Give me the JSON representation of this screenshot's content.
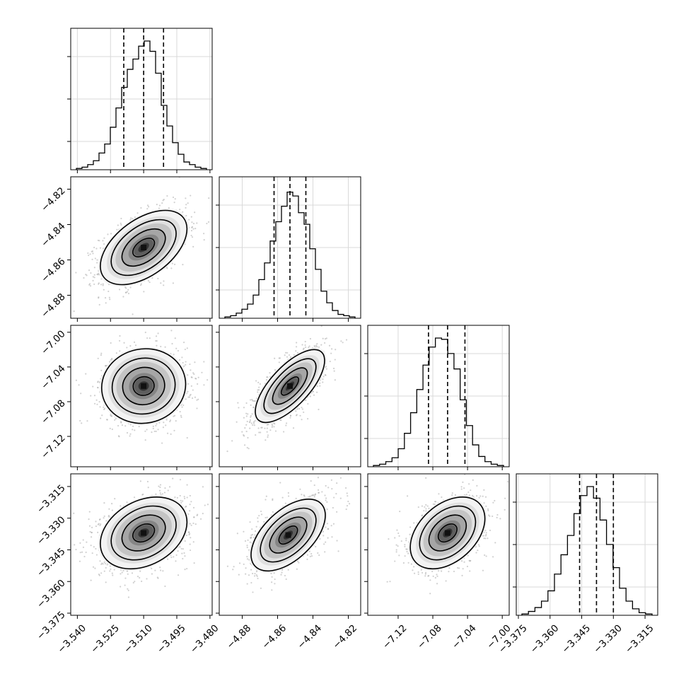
{
  "chart_data": {
    "type": "corner",
    "parameters": 4,
    "grid": true,
    "quantile_lines": "dashed",
    "parameter_stats": [
      {
        "median": -3.51,
        "q16": -3.519,
        "q84": -3.501
      },
      {
        "median": -4.853,
        "q16": -4.862,
        "q84": -4.844
      },
      {
        "median": -7.063,
        "q16": -7.085,
        "q84": -7.043
      },
      {
        "median": -3.338,
        "q16": -3.346,
        "q84": -3.33
      }
    ],
    "axes": [
      {
        "range": [
          -3.543,
          -3.479
        ],
        "ticks": [
          "−3.540",
          "−3.525",
          "−3.510",
          "−3.495",
          "−3.480"
        ],
        "tick_values": [
          -3.54,
          -3.525,
          -3.51,
          -3.495,
          -3.48
        ]
      },
      {
        "range": [
          -4.893,
          -4.813
        ],
        "ticks": [
          "−4.88",
          "−4.86",
          "−4.84",
          "−4.82"
        ],
        "tick_values": [
          -4.88,
          -4.86,
          -4.84,
          -4.82
        ]
      },
      {
        "range": [
          -7.155,
          -6.992
        ],
        "ticks": [
          "−7.12",
          "−7.08",
          "−7.04",
          "−7.00"
        ],
        "tick_values": [
          -7.12,
          -7.08,
          -7.04,
          -7.0
        ]
      },
      {
        "range": [
          -3.376,
          -3.309
        ],
        "ticks": [
          "−3.375",
          "−3.360",
          "−3.345",
          "−3.330",
          "−3.315"
        ],
        "tick_values": [
          -3.375,
          -3.36,
          -3.345,
          -3.33,
          -3.315
        ]
      }
    ],
    "histograms": [
      {
        "param": 0,
        "counts": [
          0.01,
          0.02,
          0.04,
          0.07,
          0.13,
          0.2,
          0.33,
          0.48,
          0.64,
          0.78,
          0.86,
          0.96,
          1.0,
          0.92,
          0.75,
          0.5,
          0.34,
          0.21,
          0.12,
          0.06,
          0.04,
          0.02,
          0.01
        ]
      },
      {
        "param": 1,
        "counts": [
          0.01,
          0.02,
          0.04,
          0.07,
          0.11,
          0.18,
          0.3,
          0.43,
          0.6,
          0.75,
          0.87,
          0.98,
          0.95,
          0.82,
          0.73,
          0.54,
          0.38,
          0.21,
          0.12,
          0.06,
          0.03,
          0.02,
          0.01
        ]
      },
      {
        "param": 2,
        "counts": [
          0.01,
          0.02,
          0.04,
          0.07,
          0.14,
          0.26,
          0.42,
          0.6,
          0.79,
          0.93,
          1.0,
          0.99,
          0.88,
          0.76,
          0.52,
          0.32,
          0.17,
          0.08,
          0.04,
          0.02,
          0.01
        ]
      },
      {
        "param": 3,
        "counts": [
          0.01,
          0.03,
          0.06,
          0.11,
          0.19,
          0.32,
          0.47,
          0.62,
          0.79,
          0.93,
          1.0,
          0.91,
          0.74,
          0.55,
          0.37,
          0.21,
          0.11,
          0.05,
          0.02,
          0.01
        ]
      }
    ],
    "joints": [
      {
        "x_param": 0,
        "y_param": 1,
        "center": [
          -3.51,
          -4.853
        ],
        "sigma": [
          0.0098,
          0.0105
        ],
        "correlation": 0.5
      },
      {
        "x_param": 0,
        "y_param": 2,
        "center": [
          -3.51,
          -7.062
        ],
        "sigma": [
          0.0095,
          0.0215
        ],
        "correlation": 0.05
      },
      {
        "x_param": 1,
        "y_param": 2,
        "center": [
          -4.853,
          -7.062
        ],
        "sigma": [
          0.0098,
          0.021
        ],
        "correlation": 0.7
      },
      {
        "x_param": 0,
        "y_param": 3,
        "center": [
          -3.51,
          -3.337
        ],
        "sigma": [
          0.0098,
          0.0085
        ],
        "correlation": 0.3
      },
      {
        "x_param": 1,
        "y_param": 3,
        "center": [
          -4.854,
          -3.338
        ],
        "sigma": [
          0.0105,
          0.0085
        ],
        "correlation": 0.55
      },
      {
        "x_param": 2,
        "y_param": 3,
        "center": [
          -7.063,
          -3.337
        ],
        "sigma": [
          0.0215,
          0.0085
        ],
        "correlation": 0.4
      }
    ],
    "contour_levels_sigma": [
      0.5,
      1.0,
      1.5,
      2.0
    ]
  }
}
